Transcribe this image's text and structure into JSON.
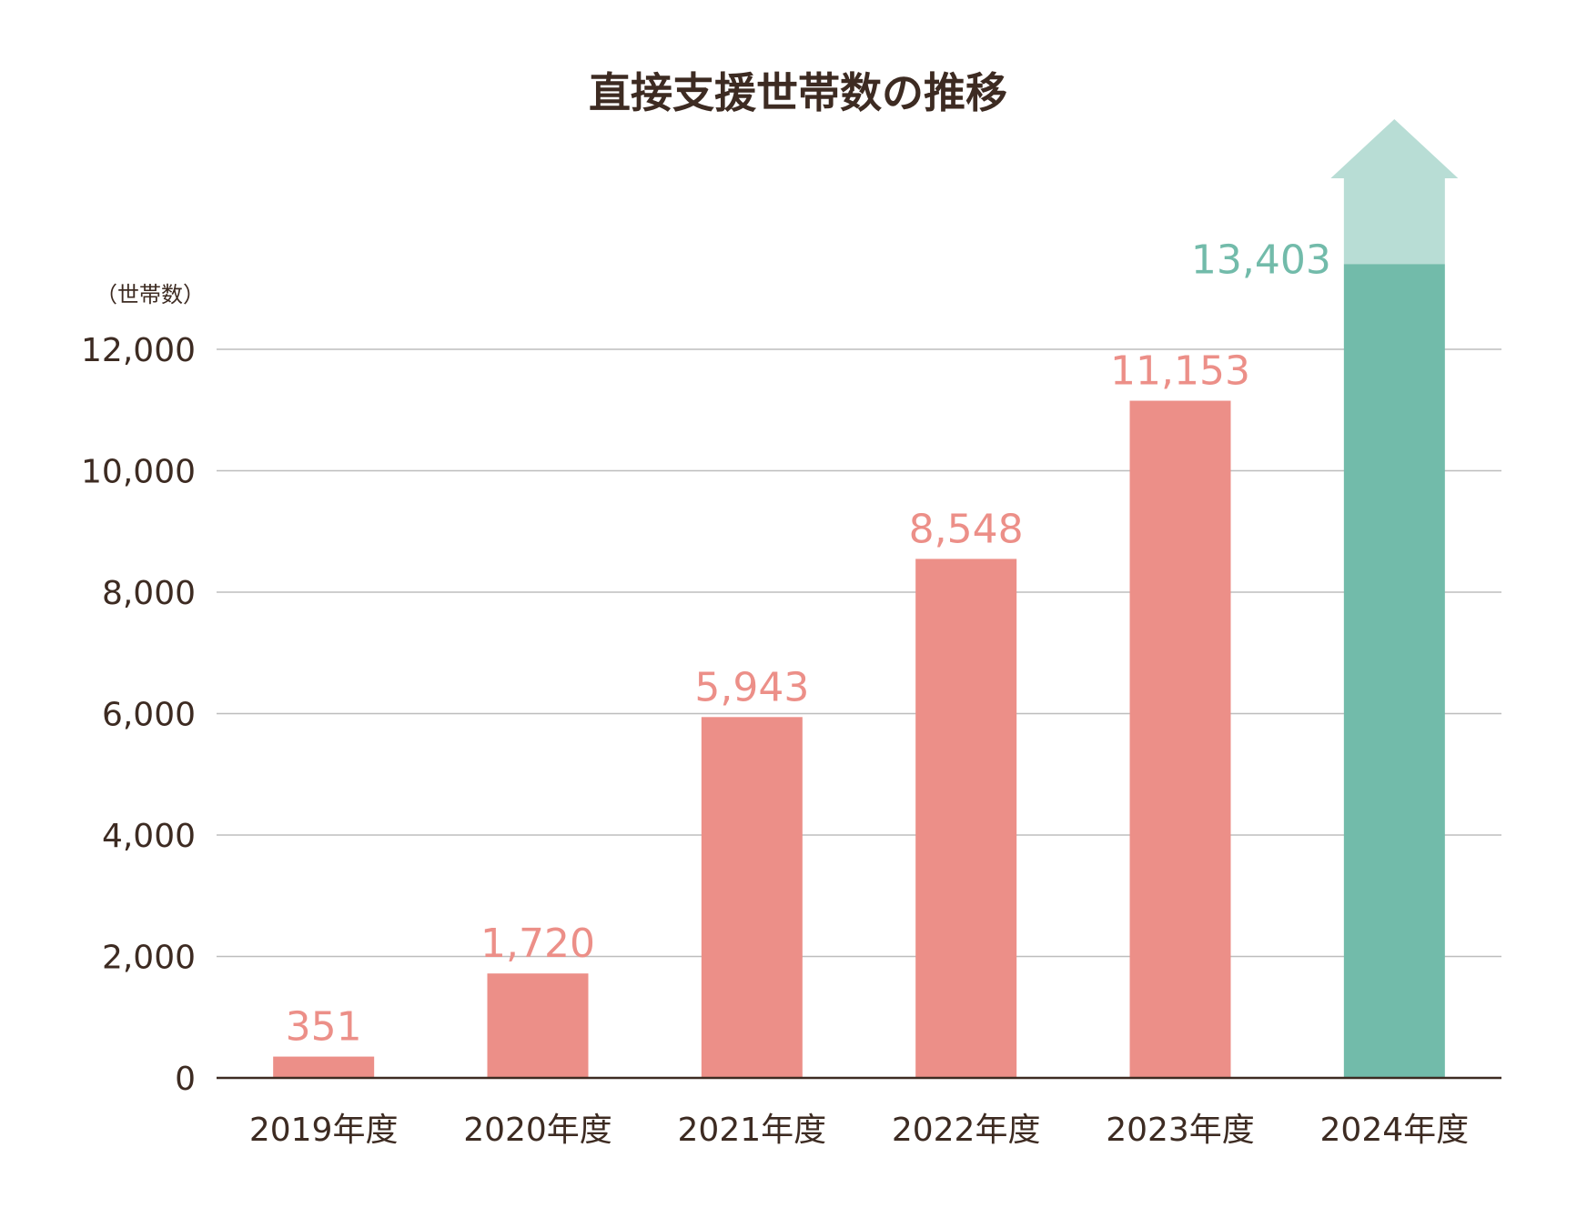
{
  "chart_data": {
    "type": "bar",
    "title": "直接支援世帯数の推移",
    "ylabel": "（世帯数）",
    "xlabel": "",
    "ylim": [
      0,
      12000
    ],
    "yticks": [
      0,
      2000,
      4000,
      6000,
      8000,
      10000,
      12000
    ],
    "ytick_labels": [
      "0",
      "2,000",
      "4,000",
      "6,000",
      "8,000",
      "10,000",
      "12,000"
    ],
    "categories": [
      "2019年度",
      "2020年度",
      "2021年度",
      "2022年度",
      "2023年度",
      "2024年度"
    ],
    "values": [
      351,
      1720,
      5943,
      8548,
      11153,
      13403
    ],
    "value_labels": [
      "351",
      "1,720",
      "5,943",
      "8,548",
      "11,153",
      "13,403"
    ],
    "highlight_index": 5,
    "grid": true,
    "colors": {
      "bar": "#ec8f88",
      "highlight": "#72bbaa",
      "arrow": "#b8ddd5",
      "highlight_label": "#72bbaa",
      "label": "#ec8f88",
      "text": "#3d2b22",
      "grid": "#bdbdbd",
      "axis": "#3d2b22"
    }
  }
}
